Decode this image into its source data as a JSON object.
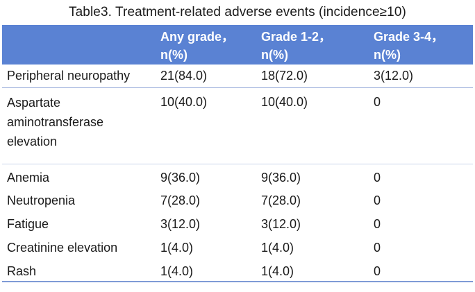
{
  "caption": "Table3. Treatment-related adverse events (incidence≥10)",
  "columns": [
    {
      "line1": "",
      "line2": ""
    },
    {
      "line1": "Any grade，",
      "line2": "n(%)"
    },
    {
      "line1": "Grade 1-2，",
      "line2": "n(%)"
    },
    {
      "line1": "Grade 3-4，",
      "line2": "n(%)"
    }
  ],
  "rows": [
    {
      "event": "Peripheral neuropathy",
      "any": "21(84.0)",
      "g12": "18(72.0)",
      "g34": "3(12.0)"
    },
    {
      "event": "Aspartate aminotransferase elevation",
      "any": "10(40.0)",
      "g12": "10(40.0)",
      "g34": "0"
    },
    {
      "event": "Anemia",
      "any": "9(36.0)",
      "g12": "9(36.0)",
      "g34": "0"
    },
    {
      "event": "Neutropenia",
      "any": "7(28.0)",
      "g12": "7(28.0)",
      "g34": "0"
    },
    {
      "event": "Fatigue",
      "any": "3(12.0)",
      "g12": "3(12.0)",
      "g34": "0"
    },
    {
      "event": "Creatinine elevation",
      "any": "1(4.0)",
      "g12": "1(4.0)",
      "g34": "0"
    },
    {
      "event": "Rash",
      "any": "1(4.0)",
      "g12": "1(4.0)",
      "g34": "0"
    }
  ],
  "colors": {
    "header_bg": "#5a82d3",
    "header_text": "#ffffff",
    "rule": "#7f9bd6"
  }
}
